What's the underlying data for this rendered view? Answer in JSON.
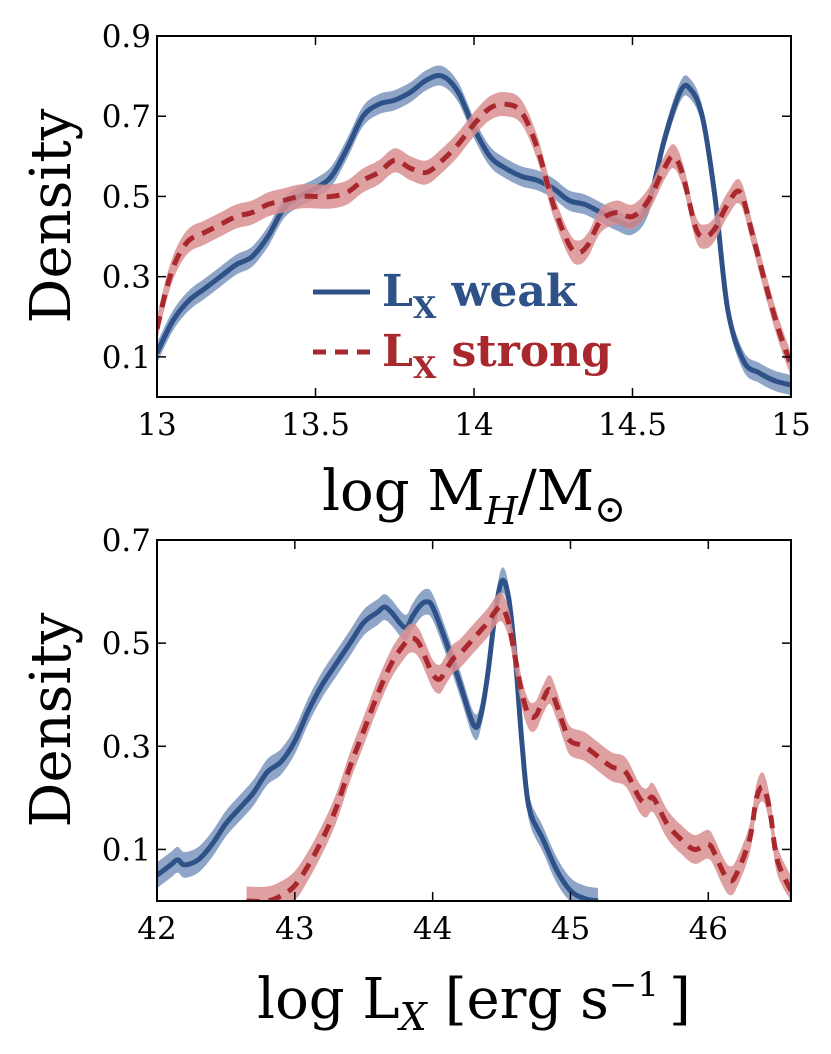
{
  "colors": {
    "weak": "#2e5287",
    "weak_band": "#7b95bd",
    "strong": "#a9282d",
    "strong_band": "#d98f92"
  },
  "chart_data": [
    {
      "type": "line",
      "panel": "top",
      "xlabel": "log M",
      "xlabel_sub": "H",
      "xlabel_slash": "/M",
      "xlabel_sun": "⊙",
      "ylabel": "Density",
      "xlim": [
        13,
        15
      ],
      "ylim": [
        0,
        0.9
      ],
      "xticks": [
        13,
        13.5,
        14,
        14.5,
        15
      ],
      "xtick_labels": [
        "13",
        "13.5",
        "14",
        "14.5",
        "15"
      ],
      "yticks": [
        0.1,
        0.3,
        0.5,
        0.7,
        0.9
      ],
      "ytick_labels": [
        "0.1",
        "0.3",
        "0.5",
        "0.7",
        "0.9"
      ],
      "legend": {
        "position": "lower-center",
        "entries": [
          {
            "base": "L",
            "sub": "X",
            "suffix": " weak",
            "style": "solid",
            "series": "weak"
          },
          {
            "base": "L",
            "sub": "X",
            "suffix": " strong",
            "style": "dashed",
            "series": "strong"
          }
        ]
      },
      "series": [
        {
          "name": "LX weak",
          "x": [
            13.0,
            13.05,
            13.1,
            13.15,
            13.2,
            13.25,
            13.3,
            13.35,
            13.4,
            13.45,
            13.5,
            13.55,
            13.6,
            13.65,
            13.7,
            13.75,
            13.8,
            13.85,
            13.9,
            13.95,
            14.0,
            14.05,
            14.1,
            14.15,
            14.2,
            14.25,
            14.3,
            14.35,
            14.4,
            14.45,
            14.5,
            14.55,
            14.6,
            14.65,
            14.68,
            14.72,
            14.76,
            14.8,
            14.85,
            14.9,
            14.95,
            15.0
          ],
          "values": [
            0.11,
            0.19,
            0.24,
            0.27,
            0.3,
            0.33,
            0.35,
            0.4,
            0.47,
            0.5,
            0.52,
            0.55,
            0.62,
            0.7,
            0.73,
            0.74,
            0.76,
            0.79,
            0.8,
            0.76,
            0.67,
            0.6,
            0.57,
            0.55,
            0.54,
            0.52,
            0.49,
            0.48,
            0.46,
            0.44,
            0.43,
            0.48,
            0.64,
            0.76,
            0.77,
            0.7,
            0.5,
            0.22,
            0.09,
            0.06,
            0.04,
            0.03
          ],
          "band": 0.025
        },
        {
          "name": "LX strong",
          "x": [
            13.0,
            13.03,
            13.06,
            13.1,
            13.15,
            13.2,
            13.25,
            13.3,
            13.35,
            13.4,
            13.45,
            13.5,
            13.55,
            13.6,
            13.65,
            13.7,
            13.75,
            13.8,
            13.85,
            13.9,
            13.95,
            14.0,
            14.05,
            14.1,
            14.15,
            14.2,
            14.25,
            14.3,
            14.33,
            14.36,
            14.4,
            14.45,
            14.5,
            14.55,
            14.6,
            14.63,
            14.66,
            14.7,
            14.73,
            14.76,
            14.8,
            14.84,
            14.88,
            14.92,
            14.96,
            15.0
          ],
          "values": [
            0.17,
            0.27,
            0.34,
            0.39,
            0.41,
            0.43,
            0.45,
            0.46,
            0.48,
            0.49,
            0.5,
            0.5,
            0.5,
            0.51,
            0.54,
            0.56,
            0.59,
            0.57,
            0.56,
            0.59,
            0.63,
            0.68,
            0.72,
            0.73,
            0.71,
            0.62,
            0.48,
            0.38,
            0.36,
            0.38,
            0.44,
            0.46,
            0.45,
            0.49,
            0.57,
            0.6,
            0.55,
            0.42,
            0.4,
            0.42,
            0.48,
            0.51,
            0.4,
            0.28,
            0.17,
            0.08
          ],
          "band": 0.03
        }
      ]
    },
    {
      "type": "line",
      "panel": "bottom",
      "xlabel": "log L",
      "xlabel_sub": "X",
      "xlabel_units": "[erg s",
      "xlabel_exp": "−1",
      "xlabel_close": "]",
      "ylabel": "Density",
      "xlim": [
        42,
        46.6
      ],
      "ylim": [
        0,
        0.7
      ],
      "xticks": [
        42,
        43,
        44,
        45,
        46
      ],
      "xtick_labels": [
        "42",
        "43",
        "44",
        "45",
        "46"
      ],
      "yticks": [
        0.1,
        0.3,
        0.5,
        0.7
      ],
      "ytick_labels": [
        "0.1",
        "0.3",
        "0.5",
        "0.7"
      ],
      "series": [
        {
          "name": "LX weak",
          "x": [
            42.0,
            42.1,
            42.15,
            42.2,
            42.3,
            42.4,
            42.5,
            42.6,
            42.7,
            42.8,
            42.9,
            43.0,
            43.1,
            43.2,
            43.3,
            43.4,
            43.5,
            43.6,
            43.65,
            43.7,
            43.8,
            43.85,
            43.9,
            43.95,
            44.0,
            44.1,
            44.2,
            44.3,
            44.35,
            44.4,
            44.45,
            44.5,
            44.55,
            44.6,
            44.65,
            44.7,
            44.8,
            44.9,
            45.0,
            45.1,
            45.2
          ],
          "values": [
            0.05,
            0.07,
            0.08,
            0.07,
            0.08,
            0.11,
            0.15,
            0.18,
            0.21,
            0.25,
            0.27,
            0.31,
            0.37,
            0.42,
            0.46,
            0.5,
            0.54,
            0.56,
            0.57,
            0.56,
            0.53,
            0.55,
            0.57,
            0.58,
            0.57,
            0.5,
            0.42,
            0.34,
            0.36,
            0.44,
            0.55,
            0.62,
            0.59,
            0.47,
            0.3,
            0.18,
            0.12,
            0.06,
            0.02,
            0.005,
            0.0
          ],
          "band": 0.025
        },
        {
          "name": "LX strong",
          "x": [
            42.65,
            42.8,
            42.9,
            43.0,
            43.1,
            43.2,
            43.3,
            43.4,
            43.5,
            43.6,
            43.7,
            43.8,
            43.85,
            43.9,
            43.95,
            44.0,
            44.05,
            44.1,
            44.15,
            44.2,
            44.3,
            44.4,
            44.45,
            44.5,
            44.55,
            44.6,
            44.65,
            44.7,
            44.75,
            44.8,
            44.85,
            44.9,
            44.95,
            45.0,
            45.1,
            45.2,
            45.3,
            45.4,
            45.5,
            45.55,
            45.6,
            45.7,
            45.8,
            45.9,
            46.0,
            46.05,
            46.1,
            46.15,
            46.2,
            46.3,
            46.35,
            46.4,
            46.45,
            46.5,
            46.6
          ],
          "values": [
            0.0,
            0.0,
            0.01,
            0.03,
            0.07,
            0.12,
            0.18,
            0.26,
            0.33,
            0.4,
            0.46,
            0.5,
            0.51,
            0.5,
            0.47,
            0.44,
            0.43,
            0.45,
            0.47,
            0.48,
            0.51,
            0.54,
            0.56,
            0.57,
            0.54,
            0.47,
            0.4,
            0.36,
            0.36,
            0.39,
            0.41,
            0.38,
            0.34,
            0.31,
            0.3,
            0.28,
            0.26,
            0.25,
            0.2,
            0.19,
            0.2,
            0.15,
            0.12,
            0.1,
            0.11,
            0.09,
            0.06,
            0.04,
            0.05,
            0.12,
            0.2,
            0.22,
            0.17,
            0.08,
            0.02
          ],
          "band": 0.028
        }
      ]
    }
  ]
}
